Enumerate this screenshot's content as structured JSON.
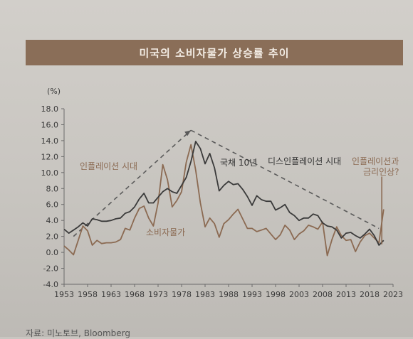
{
  "title": "미국의 소비자물가 상승률 추이",
  "source": "자료: 미노토브, Bloomberg",
  "colors": {
    "title_bg": "#8a6e58",
    "cpi": "#8b6a52",
    "treasury": "#3a3a3a",
    "trend": "#5a5a5a",
    "annotation_brown": "#8b6a52",
    "annotation_dark": "#333333"
  },
  "chart_data": {
    "type": "line",
    "ylabel": "(%)",
    "ylim": [
      -4.0,
      18.0
    ],
    "y_ticks": [
      "18.0",
      "16.0",
      "14.0",
      "12.0",
      "10.0",
      "8.0",
      "6.0",
      "4.0",
      "2.0",
      "0.0",
      "-2.0",
      "-4.0"
    ],
    "xlim": [
      1953,
      2023
    ],
    "x_ticks": [
      "1953",
      "1958",
      "1963",
      "1968",
      "1973",
      "1978",
      "1983",
      "1988",
      "1993",
      "1998",
      "2003",
      "2008",
      "2013",
      "2018",
      "2023"
    ],
    "series": [
      {
        "name": "국채 10년",
        "x": [
          1953,
          1954,
          1955,
          1956,
          1957,
          1958,
          1959,
          1960,
          1961,
          1962,
          1963,
          1964,
          1965,
          1966,
          1967,
          1968,
          1969,
          1970,
          1971,
          1972,
          1973,
          1974,
          1975,
          1976,
          1977,
          1978,
          1979,
          1980,
          1981,
          1982,
          1983,
          1984,
          1985,
          1986,
          1987,
          1988,
          1989,
          1990,
          1991,
          1992,
          1993,
          1994,
          1995,
          1996,
          1997,
          1998,
          1999,
          2000,
          2001,
          2002,
          2003,
          2004,
          2005,
          2006,
          2007,
          2008,
          2009,
          2010,
          2011,
          2012,
          2013,
          2014,
          2015,
          2016,
          2017,
          2018,
          2019,
          2020,
          2021
        ],
        "y": [
          2.9,
          2.4,
          2.8,
          3.2,
          3.7,
          3.3,
          4.2,
          4.1,
          3.9,
          3.9,
          4.0,
          4.2,
          4.3,
          4.9,
          5.1,
          5.7,
          6.7,
          7.4,
          6.2,
          6.2,
          6.9,
          7.6,
          8.0,
          7.6,
          7.4,
          8.4,
          9.4,
          11.4,
          13.9,
          13.0,
          11.1,
          12.4,
          10.6,
          7.7,
          8.4,
          8.9,
          8.5,
          8.6,
          7.9,
          7.0,
          5.9,
          7.1,
          6.6,
          6.4,
          6.4,
          5.3,
          5.6,
          6.0,
          5.0,
          4.6,
          4.0,
          4.3,
          4.3,
          4.8,
          4.6,
          3.7,
          3.3,
          3.2,
          2.8,
          1.8,
          2.4,
          2.5,
          2.1,
          1.8,
          2.3,
          2.9,
          2.1,
          0.9,
          1.5
        ]
      },
      {
        "name": "소비자물가",
        "x": [
          1953,
          1954,
          1955,
          1956,
          1957,
          1958,
          1959,
          1960,
          1961,
          1962,
          1963,
          1964,
          1965,
          1966,
          1967,
          1968,
          1969,
          1970,
          1971,
          1972,
          1973,
          1974,
          1975,
          1976,
          1977,
          1978,
          1979,
          1980,
          1981,
          1982,
          1983,
          1984,
          1985,
          1986,
          1987,
          1988,
          1989,
          1990,
          1991,
          1992,
          1993,
          1994,
          1995,
          1996,
          1997,
          1998,
          1999,
          2000,
          2001,
          2002,
          2003,
          2004,
          2005,
          2006,
          2007,
          2008,
          2009,
          2010,
          2011,
          2012,
          2013,
          2014,
          2015,
          2016,
          2017,
          2018,
          2019,
          2020,
          2021
        ],
        "y": [
          0.8,
          0.3,
          -0.3,
          1.5,
          3.3,
          2.7,
          0.9,
          1.5,
          1.1,
          1.2,
          1.2,
          1.3,
          1.6,
          3.0,
          2.8,
          4.3,
          5.5,
          5.8,
          4.3,
          3.3,
          6.2,
          11.0,
          9.1,
          5.7,
          6.5,
          7.6,
          11.3,
          13.5,
          10.3,
          6.2,
          3.2,
          4.3,
          3.6,
          1.9,
          3.6,
          4.1,
          4.8,
          5.4,
          4.2,
          3.0,
          3.0,
          2.6,
          2.8,
          3.0,
          2.3,
          1.6,
          2.2,
          3.4,
          2.8,
          1.6,
          2.3,
          2.7,
          3.4,
          3.2,
          2.9,
          3.8,
          -0.4,
          1.6,
          3.2,
          2.1,
          1.5,
          1.6,
          0.1,
          1.3,
          2.1,
          2.4,
          1.8,
          1.2,
          5.4
        ]
      }
    ],
    "annotations": [
      "인플레이션 시대",
      "디스인플레이션 시대",
      "인플레이션과 금리인상?",
      "국채 10년",
      "소비자물가"
    ]
  }
}
